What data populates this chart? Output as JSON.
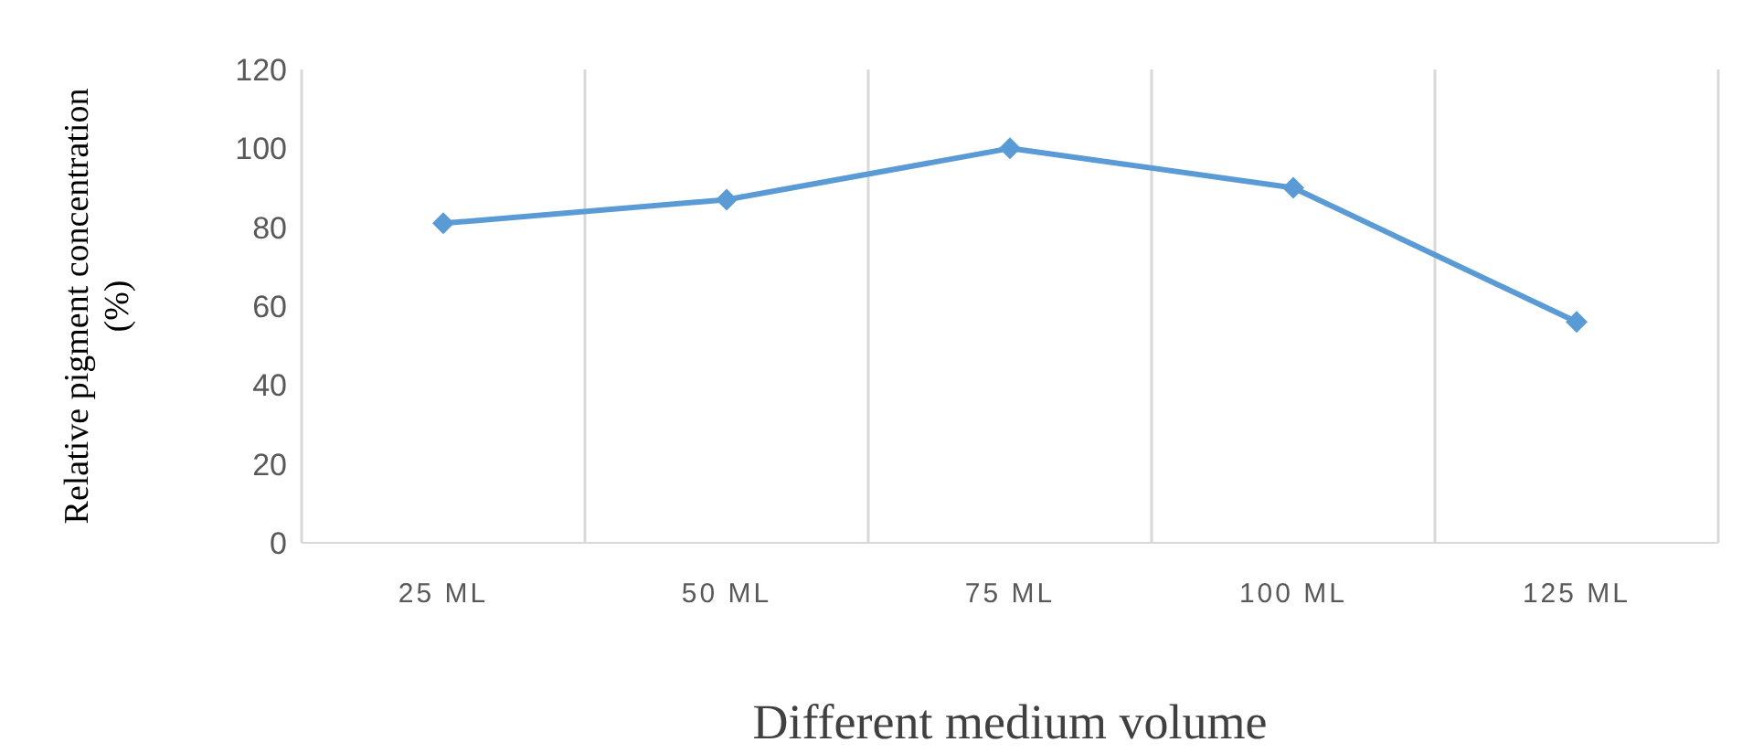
{
  "chart_data": {
    "type": "line",
    "xlabel": "Different medium volume",
    "ylabel": "Relative pigment concentration (%)",
    "categories": [
      "25 ML",
      "50 ML",
      "75 ML",
      "100 ML",
      "125 ML"
    ],
    "series": [
      {
        "color": "#5b9bd5",
        "values": [
          81,
          87,
          100,
          90,
          56
        ]
      }
    ],
    "ylim": [
      0,
      120
    ],
    "yticks": [
      0,
      20,
      40,
      60,
      80,
      100,
      120
    ],
    "grid": "x",
    "marker": "diamond"
  }
}
